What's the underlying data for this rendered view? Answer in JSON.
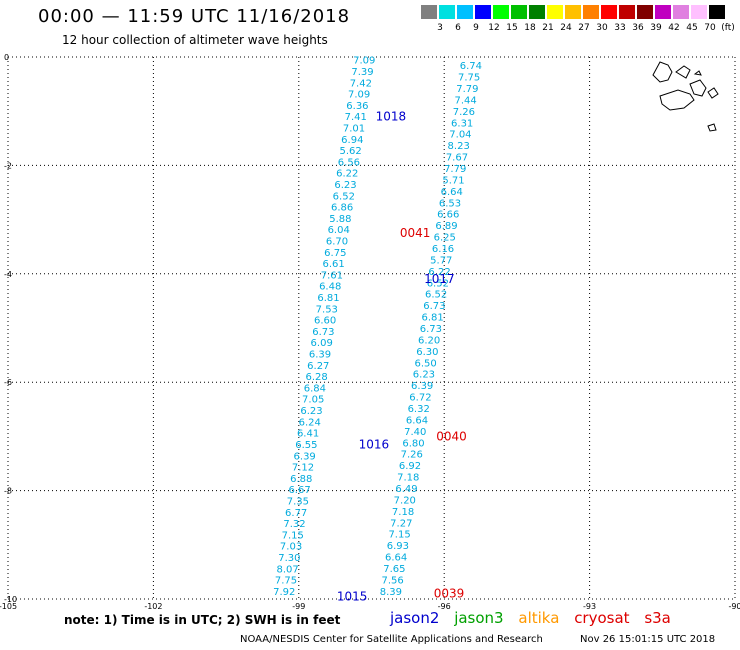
{
  "header": {
    "title": "00:00 — 11:59 UTC 11/16/2018",
    "subtitle": "12 hour collection of altimeter wave heights"
  },
  "color_scale": {
    "labels": [
      "3",
      "6",
      "9",
      "12",
      "15",
      "18",
      "21",
      "24",
      "27",
      "30",
      "33",
      "36",
      "39",
      "42",
      "45",
      "70",
      "(ft)"
    ],
    "colors": [
      "#808080",
      "#00e0e0",
      "#00c0ff",
      "#0000ff",
      "#00ff00",
      "#00c000",
      "#008000",
      "#ffff00",
      "#ffc000",
      "#ff8000",
      "#ff0000",
      "#c00000",
      "#800000",
      "#c000c0",
      "#e080e0",
      "#ffc0ff",
      "#000000"
    ]
  },
  "chart_data": {
    "type": "scatter",
    "xlim": [
      -105,
      -90
    ],
    "ylim": [
      -10,
      0
    ],
    "x_ticks": [
      "-105",
      "-102",
      "-99",
      "-96",
      "-93",
      "-90"
    ],
    "y_ticks": [
      "0",
      "-2",
      "-4",
      "-6",
      "-8",
      "-10"
    ],
    "grid": true,
    "value_color": "#00aadd",
    "tracks": [
      {
        "name": "track_west",
        "values": [
          "7.09",
          "7.39",
          "7.42",
          "7.09",
          "6.36",
          "7.41",
          "7.01",
          "6.94",
          "5.62",
          "6.56",
          "6.22",
          "6.23",
          "6.52",
          "6.86",
          "5.88",
          "6.04",
          "6.70",
          "6.75",
          "6.61",
          "7.61",
          "6.48",
          "6.81",
          "7.53",
          "6.60",
          "6.73",
          "6.09",
          "6.39",
          "6.27",
          "6.28",
          "6.84",
          "7.05",
          "6.23",
          "6.24",
          "6.41",
          "6.55",
          "6.39",
          "7.12",
          "6.88",
          "6.67",
          "7.35",
          "6.77",
          "7.32",
          "7.15",
          "7.03",
          "7.30",
          "8.07",
          "7.75",
          "7.92"
        ]
      },
      {
        "name": "track_mid",
        "values": [
          "6.74",
          "7.75",
          "7.79",
          "7.44",
          "7.26",
          "6.31",
          "7.04",
          "8.23",
          "7.67",
          "7.79",
          "5.71",
          "6.64",
          "6.53",
          "6.66",
          "6.89",
          "6.25",
          "6.16",
          "5.77",
          "6.22",
          "6.52",
          "6.52",
          "6.73",
          "6.81",
          "6.73",
          "6.20",
          "6.30",
          "6.50",
          "6.23",
          "6.39",
          "6.72",
          "6.32",
          "6.64",
          "7.40",
          "6.80",
          "7.26",
          "6.92",
          "7.18",
          "6.49",
          "7.20",
          "7.18",
          "7.27",
          "7.15",
          "6.93",
          "6.64",
          "7.65",
          "7.56",
          "8.39"
        ]
      }
    ],
    "pass_labels": [
      {
        "label": "1018",
        "lon": -97.1,
        "lat": -1.1,
        "satellite": "jason2"
      },
      {
        "label": "0041",
        "lon": -96.6,
        "lat": -3.25,
        "satellite": "cryosat"
      },
      {
        "label": "1017",
        "lon": -96.1,
        "lat": -4.1,
        "satellite": "jason2"
      },
      {
        "label": "0040",
        "lon": -95.85,
        "lat": -7.0,
        "satellite": "cryosat"
      },
      {
        "label": "1016",
        "lon": -97.45,
        "lat": -7.15,
        "satellite": "jason2"
      },
      {
        "label": "1015",
        "lon": -97.9,
        "lat": -9.95,
        "satellite": "jason2"
      },
      {
        "label": "0039",
        "lon": -95.9,
        "lat": -9.9,
        "satellite": "cryosat"
      }
    ]
  },
  "note": "note: 1) Time is in UTC; 2) SWH is in feet",
  "satellites": [
    {
      "name": "jason2",
      "color": "#0000cc"
    },
    {
      "name": "jason3",
      "color": "#00a000"
    },
    {
      "name": "altika",
      "color": "#ff9900"
    },
    {
      "name": "cryosat",
      "color": "#dd0000"
    },
    {
      "name": "s3a",
      "color": "#dd0000"
    }
  ],
  "footer": {
    "credit": "NOAA/NESDIS Center for Satellite Applications and Research",
    "timestamp": "Nov 26 15:01:15 UTC 2018"
  }
}
